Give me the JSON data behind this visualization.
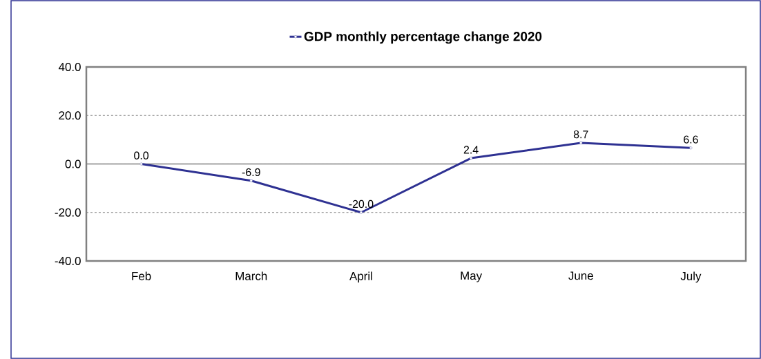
{
  "chart_data": {
    "type": "line",
    "categories": [
      "Feb",
      "March",
      "April",
      "May",
      "June",
      "July"
    ],
    "series": [
      {
        "name": "GDP monthly percentage change 2020",
        "color": "#2e3192",
        "values": [
          0.0,
          -6.9,
          -20.0,
          2.4,
          8.7,
          6.6
        ],
        "value_labels": [
          "0.0",
          "-6.9",
          "-20.0",
          "2.4",
          "8.7",
          "6.6"
        ]
      }
    ],
    "ylim": [
      -40,
      40
    ],
    "yticks": [
      {
        "value": -40,
        "label": "-40.0"
      },
      {
        "value": -20,
        "label": "-20.0"
      },
      {
        "value": 0,
        "label": "0.0"
      },
      {
        "value": 20,
        "label": "20.0"
      },
      {
        "value": 40,
        "label": "40.0"
      }
    ],
    "grid": "y",
    "legend": "top",
    "marker": "circle",
    "line_style": "solid"
  }
}
